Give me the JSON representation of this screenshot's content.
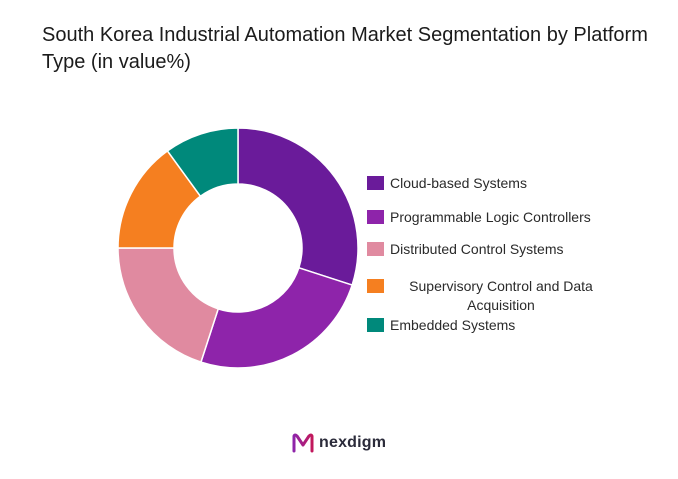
{
  "chart_data": {
    "type": "pie",
    "title": "South Korea Industrial Automation Market Segmentation by Platform Type (in value%)",
    "categories": [
      "Cloud-based Systems",
      "Programmable Logic Controllers",
      "Distributed Control Systems",
      "Supervisory Control and Data Acquisition",
      "Embedded Systems"
    ],
    "values": [
      30,
      25,
      20,
      15,
      10
    ],
    "colors": [
      "#6a1b9a",
      "#8e24aa",
      "#e08aa0",
      "#f57f20",
      "#00897b"
    ],
    "donut": true,
    "legend_position": "right"
  },
  "brand": {
    "name": "nexdigm",
    "logo_icon": "nexdigm-logo-icon",
    "logo_colors": [
      "#8e24aa",
      "#c2185b"
    ]
  }
}
